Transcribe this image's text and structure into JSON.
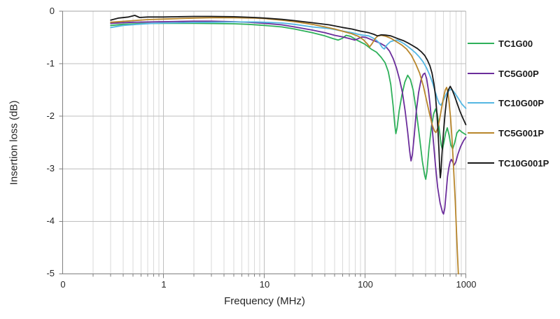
{
  "colors": {
    "background": "#ffffff",
    "grid_minor": "#d9d9d9",
    "grid_major": "#bfbfbf",
    "zero_line": "#a6a6a6",
    "axis": "#7f7f7f",
    "text": "#262626"
  },
  "chart_data": {
    "type": "line",
    "title": "",
    "xlabel": "Frequency (MHz)",
    "ylabel": "Insertion loss (dB)",
    "x_scale": "log",
    "xlim": [
      0.1,
      1000
    ],
    "ylim": [
      -5,
      0
    ],
    "x_tick_labels": [
      "0",
      "1",
      "10",
      "100",
      "1000"
    ],
    "y_tick_labels": [
      "0",
      "-1",
      "-2",
      "-3",
      "-4",
      "-5"
    ],
    "grid": "vertical log minor+major gridlines, horizontal gridlines at integer dB",
    "legend_position": "right",
    "series": [
      {
        "name": "TC1G00",
        "color": "#2eb05a",
        "points": [
          [
            0.3,
            -0.27
          ],
          [
            0.4,
            -0.25
          ],
          [
            0.6,
            -0.235
          ],
          [
            1,
            -0.23
          ],
          [
            2,
            -0.23
          ],
          [
            3,
            -0.235
          ],
          [
            5,
            -0.24
          ],
          [
            7,
            -0.25
          ],
          [
            10,
            -0.27
          ],
          [
            15,
            -0.3
          ],
          [
            20,
            -0.34
          ],
          [
            30,
            -0.41
          ],
          [
            40,
            -0.47
          ],
          [
            48,
            -0.52
          ],
          [
            54,
            -0.55
          ],
          [
            59,
            -0.52
          ],
          [
            65,
            -0.46
          ],
          [
            72,
            -0.48
          ],
          [
            83,
            -0.55
          ],
          [
            100,
            -0.63
          ],
          [
            115,
            -0.72
          ],
          [
            130,
            -0.78
          ],
          [
            145,
            -0.88
          ],
          [
            158,
            -0.98
          ],
          [
            170,
            -1.15
          ],
          [
            180,
            -1.4
          ],
          [
            190,
            -1.8
          ],
          [
            197,
            -2.15
          ],
          [
            202,
            -2.33
          ],
          [
            208,
            -2.22
          ],
          [
            218,
            -1.9
          ],
          [
            232,
            -1.6
          ],
          [
            248,
            -1.35
          ],
          [
            265,
            -1.22
          ],
          [
            282,
            -1.3
          ],
          [
            300,
            -1.5
          ],
          [
            320,
            -1.85
          ],
          [
            345,
            -2.35
          ],
          [
            370,
            -2.85
          ],
          [
            390,
            -3.12
          ],
          [
            400,
            -3.2
          ],
          [
            412,
            -3.05
          ],
          [
            430,
            -2.62
          ],
          [
            455,
            -2.2
          ],
          [
            480,
            -1.95
          ],
          [
            500,
            -1.86
          ],
          [
            520,
            -1.95
          ],
          [
            545,
            -2.25
          ],
          [
            570,
            -2.55
          ],
          [
            585,
            -2.63
          ],
          [
            605,
            -2.5
          ],
          [
            630,
            -2.32
          ],
          [
            655,
            -2.22
          ],
          [
            680,
            -2.35
          ],
          [
            710,
            -2.55
          ],
          [
            740,
            -2.62
          ],
          [
            775,
            -2.5
          ],
          [
            815,
            -2.32
          ],
          [
            860,
            -2.26
          ],
          [
            910,
            -2.3
          ],
          [
            1000,
            -2.35
          ]
        ]
      },
      {
        "name": "TC5G00P",
        "color": "#6b2d9b",
        "points": [
          [
            0.3,
            -0.23
          ],
          [
            0.5,
            -0.21
          ],
          [
            1,
            -0.2
          ],
          [
            2,
            -0.19
          ],
          [
            3,
            -0.19
          ],
          [
            5,
            -0.2
          ],
          [
            7,
            -0.21
          ],
          [
            10,
            -0.23
          ],
          [
            15,
            -0.26
          ],
          [
            20,
            -0.3
          ],
          [
            30,
            -0.36
          ],
          [
            40,
            -0.41
          ],
          [
            50,
            -0.46
          ],
          [
            60,
            -0.49
          ],
          [
            70,
            -0.52
          ],
          [
            79,
            -0.55
          ],
          [
            86,
            -0.52
          ],
          [
            93,
            -0.49
          ],
          [
            102,
            -0.5
          ],
          [
            115,
            -0.54
          ],
          [
            130,
            -0.58
          ],
          [
            145,
            -0.62
          ],
          [
            160,
            -0.67
          ],
          [
            175,
            -0.76
          ],
          [
            190,
            -0.9
          ],
          [
            205,
            -1.08
          ],
          [
            220,
            -1.3
          ],
          [
            235,
            -1.55
          ],
          [
            250,
            -1.9
          ],
          [
            265,
            -2.3
          ],
          [
            278,
            -2.68
          ],
          [
            286,
            -2.85
          ],
          [
            295,
            -2.72
          ],
          [
            308,
            -2.35
          ],
          [
            322,
            -1.92
          ],
          [
            340,
            -1.55
          ],
          [
            360,
            -1.3
          ],
          [
            378,
            -1.2
          ],
          [
            392,
            -1.18
          ],
          [
            408,
            -1.28
          ],
          [
            425,
            -1.5
          ],
          [
            442,
            -1.78
          ],
          [
            460,
            -2.15
          ],
          [
            480,
            -2.55
          ],
          [
            500,
            -2.95
          ],
          [
            525,
            -3.35
          ],
          [
            555,
            -3.65
          ],
          [
            585,
            -3.82
          ],
          [
            600,
            -3.86
          ],
          [
            618,
            -3.75
          ],
          [
            638,
            -3.45
          ],
          [
            658,
            -3.15
          ],
          [
            678,
            -2.98
          ],
          [
            698,
            -2.87
          ],
          [
            718,
            -2.82
          ],
          [
            740,
            -2.87
          ],
          [
            765,
            -2.93
          ],
          [
            795,
            -2.87
          ],
          [
            835,
            -2.72
          ],
          [
            885,
            -2.58
          ],
          [
            945,
            -2.47
          ],
          [
            1000,
            -2.4
          ]
        ]
      },
      {
        "name": "TC10G00P",
        "color": "#54b7e3",
        "points": [
          [
            0.3,
            -0.31
          ],
          [
            0.4,
            -0.27
          ],
          [
            0.55,
            -0.25
          ],
          [
            0.8,
            -0.23
          ],
          [
            1,
            -0.225
          ],
          [
            2,
            -0.215
          ],
          [
            3,
            -0.21
          ],
          [
            5,
            -0.205
          ],
          [
            8,
            -0.205
          ],
          [
            10,
            -0.21
          ],
          [
            15,
            -0.225
          ],
          [
            20,
            -0.25
          ],
          [
            30,
            -0.3
          ],
          [
            44,
            -0.33
          ],
          [
            60,
            -0.38
          ],
          [
            74,
            -0.41
          ],
          [
            90,
            -0.45
          ],
          [
            109,
            -0.47
          ],
          [
            125,
            -0.53
          ],
          [
            138,
            -0.6
          ],
          [
            148,
            -0.69
          ],
          [
            155,
            -0.72
          ],
          [
            165,
            -0.64
          ],
          [
            178,
            -0.58
          ],
          [
            192,
            -0.56
          ],
          [
            208,
            -0.55
          ],
          [
            225,
            -0.58
          ],
          [
            245,
            -0.62
          ],
          [
            265,
            -0.67
          ],
          [
            290,
            -0.73
          ],
          [
            315,
            -0.79
          ],
          [
            345,
            -0.87
          ],
          [
            375,
            -0.96
          ],
          [
            405,
            -1.07
          ],
          [
            435,
            -1.2
          ],
          [
            465,
            -1.35
          ],
          [
            495,
            -1.52
          ],
          [
            520,
            -1.66
          ],
          [
            545,
            -1.76
          ],
          [
            565,
            -1.79
          ],
          [
            590,
            -1.73
          ],
          [
            620,
            -1.63
          ],
          [
            655,
            -1.54
          ],
          [
            690,
            -1.5
          ],
          [
            725,
            -1.49
          ],
          [
            765,
            -1.54
          ],
          [
            810,
            -1.61
          ],
          [
            860,
            -1.69
          ],
          [
            915,
            -1.77
          ],
          [
            1000,
            -1.85
          ]
        ]
      },
      {
        "name": "TC5G001P",
        "color": "#b8862b",
        "points": [
          [
            0.3,
            -0.21
          ],
          [
            0.5,
            -0.18
          ],
          [
            0.7,
            -0.16
          ],
          [
            1,
            -0.15
          ],
          [
            2,
            -0.13
          ],
          [
            3,
            -0.125
          ],
          [
            5,
            -0.125
          ],
          [
            8,
            -0.13
          ],
          [
            10,
            -0.14
          ],
          [
            15,
            -0.17
          ],
          [
            20,
            -0.2
          ],
          [
            30,
            -0.25
          ],
          [
            40,
            -0.3
          ],
          [
            50,
            -0.34
          ],
          [
            62,
            -0.39
          ],
          [
            74,
            -0.43
          ],
          [
            86,
            -0.48
          ],
          [
            96,
            -0.54
          ],
          [
            105,
            -0.62
          ],
          [
            111,
            -0.68
          ],
          [
            118,
            -0.61
          ],
          [
            126,
            -0.52
          ],
          [
            134,
            -0.47
          ],
          [
            146,
            -0.46
          ],
          [
            162,
            -0.48
          ],
          [
            182,
            -0.52
          ],
          [
            205,
            -0.58
          ],
          [
            230,
            -0.64
          ],
          [
            258,
            -0.72
          ],
          [
            288,
            -0.84
          ],
          [
            318,
            -1.0
          ],
          [
            348,
            -1.18
          ],
          [
            378,
            -1.42
          ],
          [
            408,
            -1.7
          ],
          [
            438,
            -1.97
          ],
          [
            465,
            -2.17
          ],
          [
            488,
            -2.28
          ],
          [
            505,
            -2.31
          ],
          [
            525,
            -2.23
          ],
          [
            550,
            -2.05
          ],
          [
            575,
            -1.84
          ],
          [
            600,
            -1.64
          ],
          [
            625,
            -1.5
          ],
          [
            645,
            -1.45
          ],
          [
            665,
            -1.56
          ],
          [
            685,
            -1.77
          ],
          [
            705,
            -2.02
          ],
          [
            725,
            -2.36
          ],
          [
            745,
            -2.76
          ],
          [
            765,
            -3.18
          ],
          [
            785,
            -3.62
          ],
          [
            805,
            -4.12
          ],
          [
            825,
            -4.62
          ],
          [
            843,
            -5.0
          ]
        ]
      },
      {
        "name": "TC10G001P",
        "color": "#1a1a1a",
        "points": [
          [
            0.3,
            -0.17
          ],
          [
            0.36,
            -0.13
          ],
          [
            0.45,
            -0.11
          ],
          [
            0.52,
            -0.08
          ],
          [
            0.58,
            -0.12
          ],
          [
            0.7,
            -0.11
          ],
          [
            1,
            -0.11
          ],
          [
            2,
            -0.1
          ],
          [
            3,
            -0.1
          ],
          [
            5,
            -0.105
          ],
          [
            8,
            -0.12
          ],
          [
            10,
            -0.13
          ],
          [
            15,
            -0.155
          ],
          [
            20,
            -0.18
          ],
          [
            30,
            -0.22
          ],
          [
            44,
            -0.26
          ],
          [
            60,
            -0.31
          ],
          [
            74,
            -0.34
          ],
          [
            90,
            -0.38
          ],
          [
            109,
            -0.41
          ],
          [
            122,
            -0.44
          ],
          [
            133,
            -0.47
          ],
          [
            144,
            -0.45
          ],
          [
            160,
            -0.455
          ],
          [
            180,
            -0.47
          ],
          [
            210,
            -0.52
          ],
          [
            240,
            -0.56
          ],
          [
            270,
            -0.61
          ],
          [
            300,
            -0.66
          ],
          [
            330,
            -0.71
          ],
          [
            360,
            -0.77
          ],
          [
            390,
            -0.84
          ],
          [
            415,
            -0.93
          ],
          [
            440,
            -1.04
          ],
          [
            462,
            -1.18
          ],
          [
            482,
            -1.38
          ],
          [
            500,
            -1.62
          ],
          [
            515,
            -1.92
          ],
          [
            528,
            -2.25
          ],
          [
            540,
            -2.62
          ],
          [
            550,
            -2.97
          ],
          [
            558,
            -3.17
          ],
          [
            567,
            -3.05
          ],
          [
            580,
            -2.72
          ],
          [
            600,
            -2.3
          ],
          [
            622,
            -1.95
          ],
          [
            645,
            -1.67
          ],
          [
            670,
            -1.5
          ],
          [
            700,
            -1.43
          ],
          [
            732,
            -1.5
          ],
          [
            772,
            -1.61
          ],
          [
            822,
            -1.76
          ],
          [
            872,
            -1.9
          ],
          [
            922,
            -2.01
          ],
          [
            962,
            -2.09
          ],
          [
            1000,
            -2.16
          ]
        ]
      }
    ]
  }
}
